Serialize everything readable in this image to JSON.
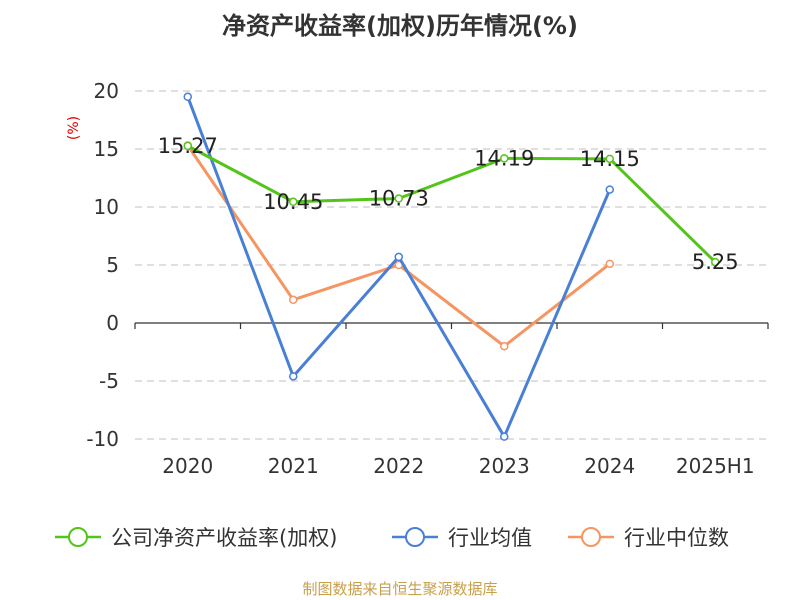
{
  "chart_data": {
    "type": "line",
    "title": "净资产收益率(加权)历年情况(%)",
    "unit": "(%)",
    "categories": [
      "2020",
      "2021",
      "2022",
      "2023",
      "2024",
      "2025H1"
    ],
    "ylim": [
      -10,
      20
    ],
    "yticks": [
      20,
      15,
      10,
      5,
      0,
      -5,
      -10
    ],
    "grid": true,
    "legend_position": "bottom",
    "series": [
      {
        "name": "公司净资产收益率(加权)",
        "color": "#52c41a",
        "values": [
          15.27,
          10.45,
          10.73,
          14.19,
          14.15,
          5.25
        ],
        "labels": [
          "15.27",
          "10.45",
          "10.73",
          "14.19",
          "14.15",
          "5.25"
        ],
        "show_labels": true
      },
      {
        "name": "行业均值",
        "color": "#4a7fd6",
        "values": [
          19.5,
          -4.6,
          5.7,
          -9.8,
          11.5,
          null
        ],
        "show_labels": false
      },
      {
        "name": "行业中位数",
        "color": "#f59562",
        "values": [
          15.3,
          2.0,
          5.0,
          -2.0,
          5.1,
          null
        ],
        "show_labels": false
      }
    ]
  },
  "source": "制图数据来自恒生聚源数据库"
}
